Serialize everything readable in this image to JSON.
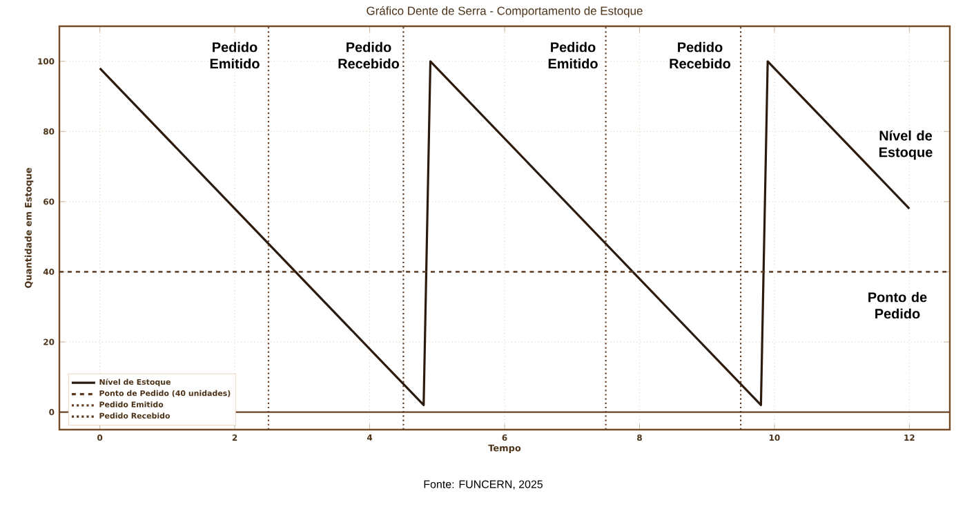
{
  "chart_data": {
    "type": "line",
    "title": "Gráfico Dente de Serra - Comportamento de Estoque",
    "xlabel": "Tempo",
    "ylabel": "Quantidade em Estoque",
    "x": [
      0,
      4.8,
      4.9,
      9.8,
      9.9,
      12
    ],
    "series": [
      {
        "name": "Nível de Estoque",
        "color": "#2b1a0e",
        "values": [
          98,
          2,
          100,
          2,
          100,
          58
        ]
      }
    ],
    "xlim": [
      -0.6,
      12.6
    ],
    "ylim": [
      -5,
      110
    ],
    "xticks": [
      0,
      2,
      4,
      6,
      8,
      10,
      12
    ],
    "yticks": [
      0,
      20,
      40,
      60,
      80,
      100
    ],
    "grid": true,
    "legend": "bottom left",
    "line_style": "solid",
    "ref_lines": [
      {
        "axis": "y",
        "value": 0,
        "color": "#6b4226",
        "line_style": "solid"
      },
      {
        "axis": "y",
        "value": 40,
        "label": "Ponto de Pedido (40 unidades)",
        "color": "#5a3a22",
        "line_style": "dashed"
      },
      {
        "axis": "x",
        "value": 2.5,
        "label": "Pedido Emitido",
        "color": "#6b3f22",
        "line_style": "dotted"
      },
      {
        "axis": "x",
        "value": 4.5,
        "label": "Pedido Recebido",
        "color": "#5a3a22",
        "line_style": "dotted"
      },
      {
        "axis": "x",
        "value": 7.5,
        "color": "#6b3f22",
        "line_style": "dotted"
      },
      {
        "axis": "x",
        "value": 9.5,
        "color": "#5a3a22",
        "line_style": "dotted"
      }
    ],
    "annotations": [
      "Pedido Emitido",
      "Pedido Recebido",
      "Pedido Emitido",
      "Pedido Recebido",
      "Nível de Estoque",
      "Ponto de Pedido",
      "Fonte: FUNCERN, 2025"
    ]
  }
}
